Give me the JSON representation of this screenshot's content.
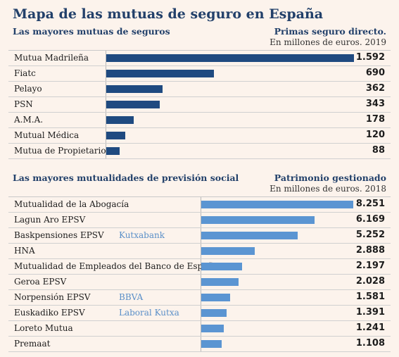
{
  "title": "Mapa de las mutuas de seguro en España",
  "chart_data": [
    {
      "type": "bar",
      "orientation": "horizontal",
      "title": "Las mayores mutuas de seguros",
      "value_label": "Primas seguro directo.",
      "unit_label": "En millones de euros. 2019",
      "color": "#1f4a80",
      "categories": [
        "Mutua Madrileña",
        "Fiatc",
        "Pelayo",
        "PSN",
        "A.M.A.",
        "Mutual Médica",
        "Mutua de Propietarios"
      ],
      "values": [
        1592,
        690,
        362,
        343,
        178,
        120,
        88
      ],
      "value_labels": [
        "1.592",
        "690",
        "362",
        "343",
        "178",
        "120",
        "88"
      ],
      "tags": [
        "",
        "",
        "",
        "",
        "",
        "",
        ""
      ]
    },
    {
      "type": "bar",
      "orientation": "horizontal",
      "title": "Las mayores mutualidades de previsión social",
      "value_label": "Patrimonio gestionado",
      "unit_label": "En millones de euros. 2018",
      "color": "#5b95d2",
      "categories": [
        "Mutualidad de la Abogacía",
        "Lagun Aro EPSV",
        "Baskpensiones EPSV",
        "HNA",
        "Mutualidad de Empleados del Banco de España",
        "Geroa EPSV",
        "Norpensión EPSV",
        "Euskadiko EPSV",
        "Loreto Mutua",
        "Premaat"
      ],
      "values": [
        8251,
        6169,
        5252,
        2888,
        2197,
        2028,
        1581,
        1391,
        1241,
        1108
      ],
      "value_labels": [
        "8.251",
        "6.169",
        "5.252",
        "2.888",
        "2.197",
        "2.028",
        "1.581",
        "1.391",
        "1.241",
        "1.108"
      ],
      "tags": [
        "",
        "",
        "Kutxabank",
        "",
        "",
        "",
        "BBVA",
        "Laboral Kutxa",
        "",
        ""
      ]
    }
  ]
}
